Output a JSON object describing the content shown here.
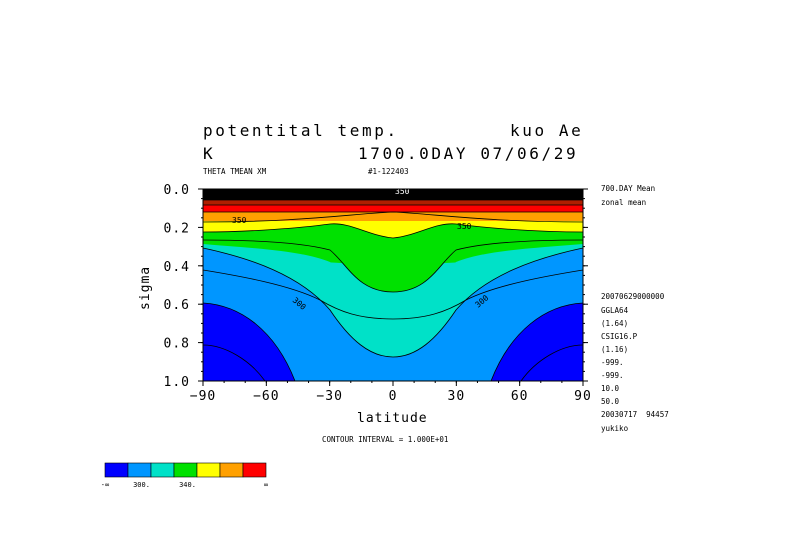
{
  "header": {
    "title": "potentital temp.",
    "model": "kuo Ae",
    "unit": "K",
    "time": "1700.0DAY 07/06/29",
    "variable": "THETA TMEAN XM",
    "run_id": "#1-122403"
  },
  "info_lines": [
    "700.DAY Mean",
    "zonal mean"
  ],
  "meta_lines": [
    "20070629000000",
    "GGLA64",
    "(1.64)",
    "CSIG16.P",
    "(1.16)",
    "-999.",
    "-999.",
    "10.0",
    "50.0",
    "20030717  94457",
    "yukiko"
  ],
  "contour_interval": "CONTOUR INTERVAL = 1.000E+01",
  "contour_labels": [
    "350",
    "350",
    "350",
    "300",
    "300"
  ],
  "colorbar": {
    "colors": [
      "#0000ff",
      "#0096ff",
      "#00e1c8",
      "#00e100",
      "#ffff00",
      "#ffa000",
      "#ff0000"
    ],
    "labels": [
      "-∞",
      "300.",
      "340.",
      "∞"
    ]
  },
  "chart_data": {
    "type": "contour",
    "title": "potentital temp.",
    "xlabel": "latitude",
    "ylabel": "sigma",
    "x_ticks": [
      "-90",
      "-60",
      "-30",
      "0",
      "30",
      "60",
      "90"
    ],
    "y_ticks": [
      "0.0",
      "0.2",
      "0.4",
      "0.6",
      "0.8",
      "1.0"
    ],
    "xlim": [
      -90,
      90
    ],
    "ylim": [
      1.0,
      0.0
    ],
    "contour_interval": 10,
    "color_levels": [
      300,
      310,
      320,
      330,
      340,
      350
    ],
    "colors": [
      "#0000ff",
      "#0096ff",
      "#00e1c8",
      "#00e100",
      "#ffff00",
      "#ffa000",
      "#ff0000"
    ],
    "contour_values_at_equator": [
      {
        "level": 290,
        "sigma": null
      },
      {
        "level": 300,
        "sigma": 0.88
      },
      {
        "level": 310,
        "sigma": 0.67
      },
      {
        "level": 320,
        "sigma": 0.54
      },
      {
        "level": 330,
        "sigma": 0.39
      },
      {
        "level": 340,
        "sigma": 0.26
      },
      {
        "level": 350,
        "sigma": 0.2
      }
    ],
    "contour_values_at_pole": [
      {
        "level": 280,
        "sigma": 0.8
      },
      {
        "level": 290,
        "sigma": 0.6
      },
      {
        "level": 300,
        "sigma": 0.44
      },
      {
        "level": 310,
        "sigma": 0.3
      },
      {
        "level": 320,
        "sigma": 0.25
      },
      {
        "level": 330,
        "sigma": 0.22
      },
      {
        "level": 340,
        "sigma": 0.2
      },
      {
        "level": 350,
        "sigma": 0.17
      }
    ]
  }
}
